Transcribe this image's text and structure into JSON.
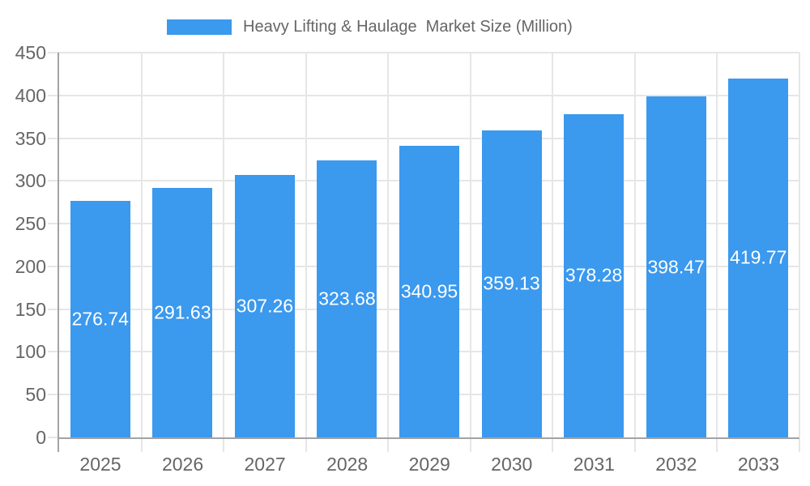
{
  "chart_data": {
    "type": "bar",
    "title": "Heavy Lifting & Haulage  Market Size (Million)",
    "categories": [
      "2025",
      "2026",
      "2027",
      "2028",
      "2029",
      "2030",
      "2031",
      "2032",
      "2033"
    ],
    "values": [
      276.74,
      291.63,
      307.26,
      323.68,
      340.95,
      359.13,
      378.28,
      398.47,
      419.77
    ],
    "value_labels": [
      "276.74",
      "291.63",
      "307.26",
      "323.68",
      "340.95",
      "359.13",
      "378.28",
      "398.47",
      "419.77"
    ],
    "xlabel": "",
    "ylabel": "",
    "ylim": [
      0,
      450
    ],
    "ytick_step": 50,
    "ytick_labels": [
      "0",
      "50",
      "100",
      "150",
      "200",
      "250",
      "300",
      "350",
      "400",
      "450"
    ],
    "grid": true,
    "legend_position": "top",
    "colors": {
      "bar": "#3b99ee",
      "bar_label_text": "#ffffff",
      "axis_text": "#666666",
      "axis_line": "#a3a3a3",
      "gridline": "#e6e6e6",
      "legend_text": "#666666"
    }
  }
}
